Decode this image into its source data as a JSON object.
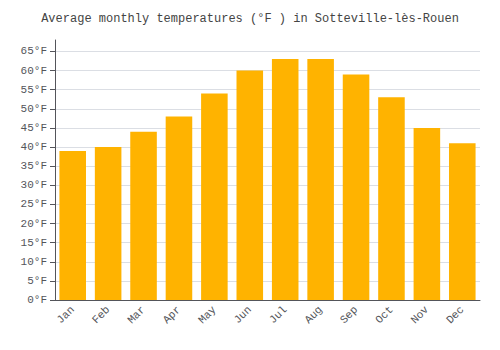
{
  "chart_data": {
    "type": "bar",
    "title": "Average monthly temperatures (°F ) in Sotteville-lès-Rouen",
    "categories": [
      "Jan",
      "Feb",
      "Mar",
      "Apr",
      "May",
      "Jun",
      "Jul",
      "Aug",
      "Sep",
      "Oct",
      "Nov",
      "Dec"
    ],
    "values": [
      39,
      40,
      44,
      48,
      54,
      60,
      63,
      63,
      59,
      53,
      45,
      41
    ],
    "color": "#FFB300",
    "ylim": [
      0,
      68
    ],
    "yticks": [
      {
        "value": 0,
        "label": "0°F"
      },
      {
        "value": 5,
        "label": "5°F"
      },
      {
        "value": 10,
        "label": "10°F"
      },
      {
        "value": 15,
        "label": "15°F"
      },
      {
        "value": 20,
        "label": "20°F"
      },
      {
        "value": 25,
        "label": "25°F"
      },
      {
        "value": 30,
        "label": "30°F"
      },
      {
        "value": 35,
        "label": "35°F"
      },
      {
        "value": 40,
        "label": "40°F"
      },
      {
        "value": 45,
        "label": "45°F"
      },
      {
        "value": 50,
        "label": "50°F"
      },
      {
        "value": 55,
        "label": "55°F"
      },
      {
        "value": 60,
        "label": "60°F"
      },
      {
        "value": 65,
        "label": "65°F"
      }
    ],
    "grid": true
  }
}
